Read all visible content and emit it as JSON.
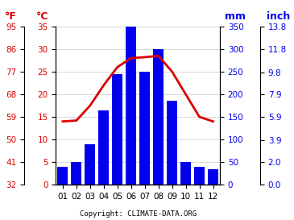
{
  "chart_data": {
    "type": "bar",
    "categories": [
      "01",
      "02",
      "03",
      "04",
      "05",
      "06",
      "07",
      "08",
      "09",
      "10",
      "11",
      "12"
    ],
    "series": [
      {
        "type": "bar",
        "axis": "y2",
        "color": "#0000ee",
        "values": [
          40,
          50,
          90,
          165,
          245,
          350,
          250,
          300,
          185,
          50,
          40,
          35
        ]
      },
      {
        "type": "line",
        "axis": "y",
        "color": "#dd0000",
        "values": [
          14.0,
          14.2,
          17.5,
          22.0,
          26.0,
          28.0,
          28.2,
          28.5,
          25.0,
          20.0,
          15.0,
          14.0
        ]
      }
    ],
    "ylim": [
      0,
      35
    ],
    "yticks": [
      0,
      5,
      10,
      15,
      20,
      25,
      30,
      35
    ],
    "ylabel": "°C",
    "y2lim": [
      0,
      350
    ],
    "y2ticks": [
      0,
      50,
      100,
      150,
      200,
      250,
      300,
      350
    ],
    "y2label": "mm",
    "y3lim": [
      32,
      95
    ],
    "y3ticks": [
      32,
      41,
      50,
      59,
      68,
      77,
      86,
      95
    ],
    "y3label": "°F",
    "y4lim": [
      0.0,
      13.8
    ],
    "y4ticks": [
      0.0,
      2.0,
      3.9,
      5.9,
      7.9,
      9.8,
      11.8,
      13.8
    ],
    "y4label": "inch",
    "grid": true,
    "annotation": "Copyright: CLIMATE-DATA.ORG"
  }
}
